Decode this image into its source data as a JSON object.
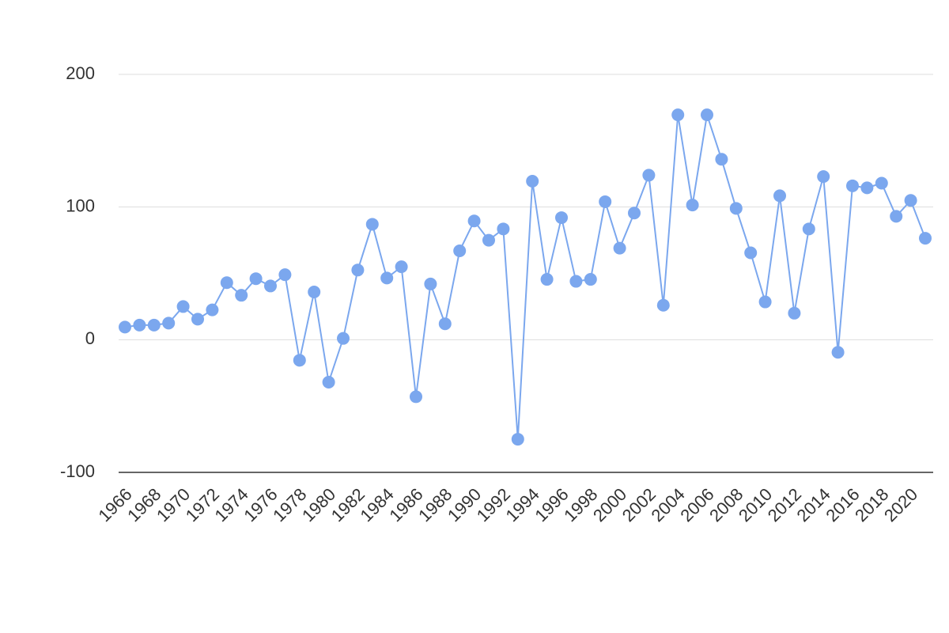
{
  "chart_data": {
    "type": "line",
    "x": [
      1966,
      1967,
      1968,
      1969,
      1970,
      1971,
      1972,
      1973,
      1974,
      1975,
      1976,
      1977,
      1978,
      1979,
      1980,
      1981,
      1982,
      1983,
      1984,
      1985,
      1986,
      1987,
      1988,
      1989,
      1990,
      1991,
      1992,
      1993,
      1994,
      1995,
      1996,
      1997,
      1998,
      1999,
      2000,
      2001,
      2002,
      2003,
      2004,
      2005,
      2006,
      2007,
      2008,
      2009,
      2010,
      2011,
      2012,
      2013,
      2014,
      2015,
      2016,
      2017,
      2018,
      2019,
      2020,
      2021
    ],
    "values": [
      9.5,
      11,
      11,
      12.5,
      25,
      15.5,
      22.5,
      43,
      33.5,
      46,
      40.5,
      49,
      -15.5,
      36,
      -32,
      1,
      52.5,
      87,
      46.5,
      55,
      -43,
      42,
      12,
      67,
      89.5,
      75,
      83.5,
      -75,
      119.5,
      45.5,
      92,
      44,
      45.5,
      104,
      69,
      95.5,
      124,
      26,
      169.5,
      101.5,
      169.5,
      136,
      99,
      65.5,
      28.5,
      108.5,
      20,
      83.5,
      123,
      -9.5,
      116,
      114.5,
      118,
      93,
      105,
      76.5
    ],
    "color": "#7ba7ee",
    "xlim": [
      1966,
      2021
    ],
    "xticks": [
      1966,
      1968,
      1970,
      1972,
      1974,
      1976,
      1978,
      1980,
      1982,
      1984,
      1986,
      1988,
      1990,
      1992,
      1994,
      1996,
      1998,
      2000,
      2002,
      2004,
      2006,
      2008,
      2010,
      2012,
      2014,
      2016,
      2018,
      2020
    ],
    "ylim": [
      -100,
      200
    ],
    "yticks": [
      200,
      100,
      0,
      -100
    ],
    "grid": true
  }
}
